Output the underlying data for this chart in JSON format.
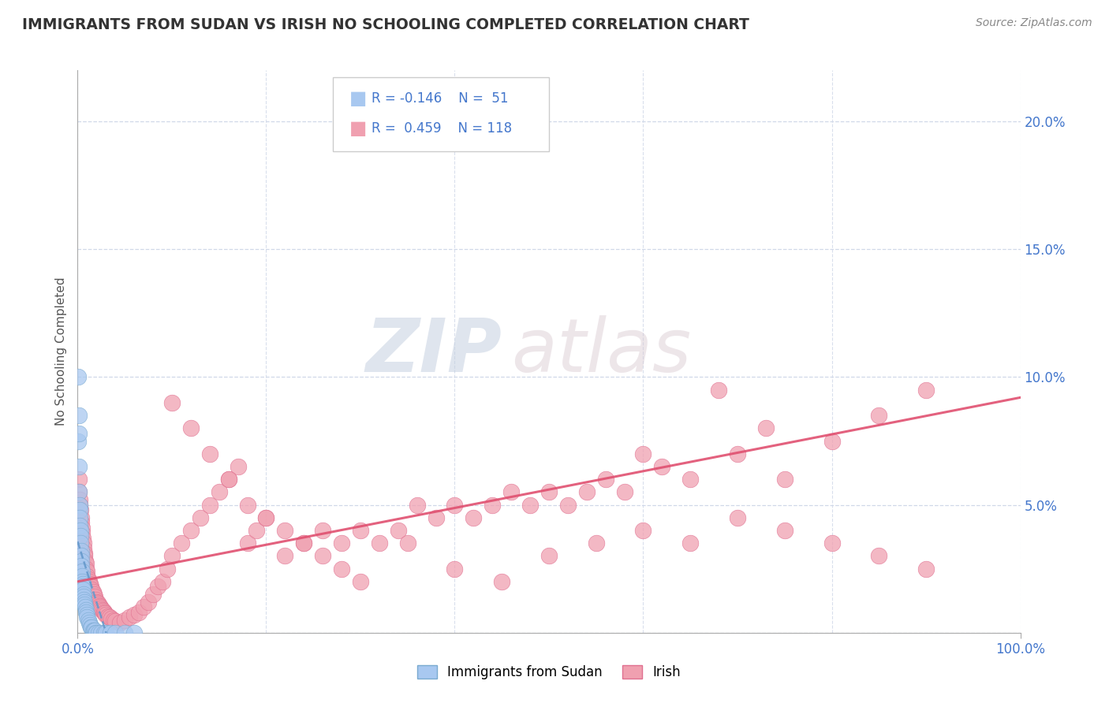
{
  "title": "IMMIGRANTS FROM SUDAN VS IRISH NO SCHOOLING COMPLETED CORRELATION CHART",
  "source": "Source: ZipAtlas.com",
  "ylabel": "No Schooling Completed",
  "xlim": [
    0,
    100
  ],
  "ylim": [
    0,
    22
  ],
  "yticks": [
    0,
    5,
    10,
    15,
    20
  ],
  "ytick_labels": [
    "",
    "5.0%",
    "10.0%",
    "15.0%",
    "20.0%"
  ],
  "xtick_left_label": "0.0%",
  "xtick_right_label": "100.0%",
  "series1_color": "#a8c8f0",
  "series1_edge": "#7aaad0",
  "series2_color": "#f0a0b0",
  "series2_edge": "#e07090",
  "series1_label": "Immigrants from Sudan",
  "series2_label": "Irish",
  "series1_R": -0.146,
  "series1_N": 51,
  "series2_R": 0.459,
  "series2_N": 118,
  "watermark_zip": "ZIP",
  "watermark_atlas": "atlas",
  "background_color": "#ffffff",
  "grid_color": "#d0d8e8",
  "title_color": "#333333",
  "axis_color": "#aaaaaa",
  "ytick_color": "#4477cc",
  "xtick_color": "#4477cc",
  "reg1_color": "#6699cc",
  "reg2_color": "#e05070",
  "series1_x": [
    0.05,
    0.08,
    0.1,
    0.12,
    0.15,
    0.18,
    0.2,
    0.22,
    0.25,
    0.28,
    0.3,
    0.32,
    0.35,
    0.38,
    0.4,
    0.42,
    0.45,
    0.48,
    0.5,
    0.52,
    0.55,
    0.58,
    0.6,
    0.62,
    0.65,
    0.7,
    0.75,
    0.8,
    0.85,
    0.9,
    0.95,
    1.0,
    1.1,
    1.2,
    1.3,
    1.4,
    1.5,
    1.6,
    1.7,
    1.8,
    1.9,
    2.0,
    2.2,
    2.5,
    2.8,
    3.0,
    3.5,
    4.0,
    5.0,
    6.0,
    0.15
  ],
  "series1_y": [
    10.0,
    7.5,
    8.5,
    6.5,
    5.5,
    5.0,
    4.8,
    4.5,
    4.2,
    4.0,
    3.8,
    3.5,
    3.2,
    3.0,
    2.8,
    2.6,
    2.4,
    2.2,
    2.0,
    1.9,
    1.8,
    1.7,
    1.5,
    1.4,
    1.3,
    1.2,
    1.1,
    1.0,
    0.9,
    0.8,
    0.7,
    0.6,
    0.5,
    0.4,
    0.3,
    0.2,
    0.2,
    0.1,
    0.1,
    0.1,
    0.0,
    0.0,
    0.0,
    0.0,
    0.0,
    0.0,
    0.0,
    0.0,
    0.0,
    0.0,
    7.8
  ],
  "series2_x": [
    0.1,
    0.15,
    0.2,
    0.25,
    0.3,
    0.35,
    0.4,
    0.45,
    0.5,
    0.55,
    0.6,
    0.65,
    0.7,
    0.75,
    0.8,
    0.85,
    0.9,
    0.95,
    1.0,
    1.1,
    1.2,
    1.3,
    1.4,
    1.5,
    1.6,
    1.7,
    1.8,
    1.9,
    2.0,
    2.1,
    2.2,
    2.3,
    2.4,
    2.5,
    2.6,
    2.7,
    2.8,
    2.9,
    3.0,
    3.2,
    3.4,
    3.6,
    3.8,
    4.0,
    4.5,
    5.0,
    5.5,
    6.0,
    6.5,
    7.0,
    7.5,
    8.0,
    8.5,
    9.0,
    9.5,
    10.0,
    11.0,
    12.0,
    13.0,
    14.0,
    15.0,
    16.0,
    17.0,
    18.0,
    19.0,
    20.0,
    22.0,
    24.0,
    26.0,
    28.0,
    30.0,
    32.0,
    34.0,
    36.0,
    38.0,
    40.0,
    42.0,
    44.0,
    46.0,
    48.0,
    50.0,
    52.0,
    54.0,
    56.0,
    58.0,
    60.0,
    62.0,
    65.0,
    68.0,
    70.0,
    73.0,
    75.0,
    80.0,
    85.0,
    90.0,
    10.0,
    12.0,
    14.0,
    16.0,
    18.0,
    20.0,
    22.0,
    24.0,
    26.0,
    28.0,
    30.0,
    35.0,
    40.0,
    45.0,
    50.0,
    55.0,
    60.0,
    65.0,
    70.0,
    75.0,
    80.0,
    85.0,
    90.0
  ],
  "series2_y": [
    6.0,
    5.5,
    5.2,
    5.0,
    4.8,
    4.5,
    4.3,
    4.1,
    3.9,
    3.7,
    3.5,
    3.3,
    3.1,
    3.0,
    2.8,
    2.7,
    2.5,
    2.4,
    2.2,
    2.1,
    2.0,
    1.9,
    1.8,
    1.7,
    1.6,
    1.5,
    1.4,
    1.3,
    1.2,
    1.15,
    1.1,
    1.05,
    1.0,
    0.95,
    0.9,
    0.85,
    0.8,
    0.75,
    0.7,
    0.65,
    0.6,
    0.55,
    0.5,
    0.45,
    0.4,
    0.5,
    0.6,
    0.7,
    0.8,
    1.0,
    1.2,
    1.5,
    1.8,
    2.0,
    2.5,
    3.0,
    3.5,
    4.0,
    4.5,
    5.0,
    5.5,
    6.0,
    6.5,
    3.5,
    4.0,
    4.5,
    3.0,
    3.5,
    4.0,
    3.5,
    4.0,
    3.5,
    4.0,
    5.0,
    4.5,
    5.0,
    4.5,
    5.0,
    5.5,
    5.0,
    5.5,
    5.0,
    5.5,
    6.0,
    5.5,
    7.0,
    6.5,
    6.0,
    9.5,
    7.0,
    8.0,
    6.0,
    7.5,
    8.5,
    9.5,
    9.0,
    8.0,
    7.0,
    6.0,
    5.0,
    4.5,
    4.0,
    3.5,
    3.0,
    2.5,
    2.0,
    3.5,
    2.5,
    2.0,
    3.0,
    3.5,
    4.0,
    3.5,
    4.5,
    4.0,
    3.5,
    3.0,
    2.5
  ]
}
